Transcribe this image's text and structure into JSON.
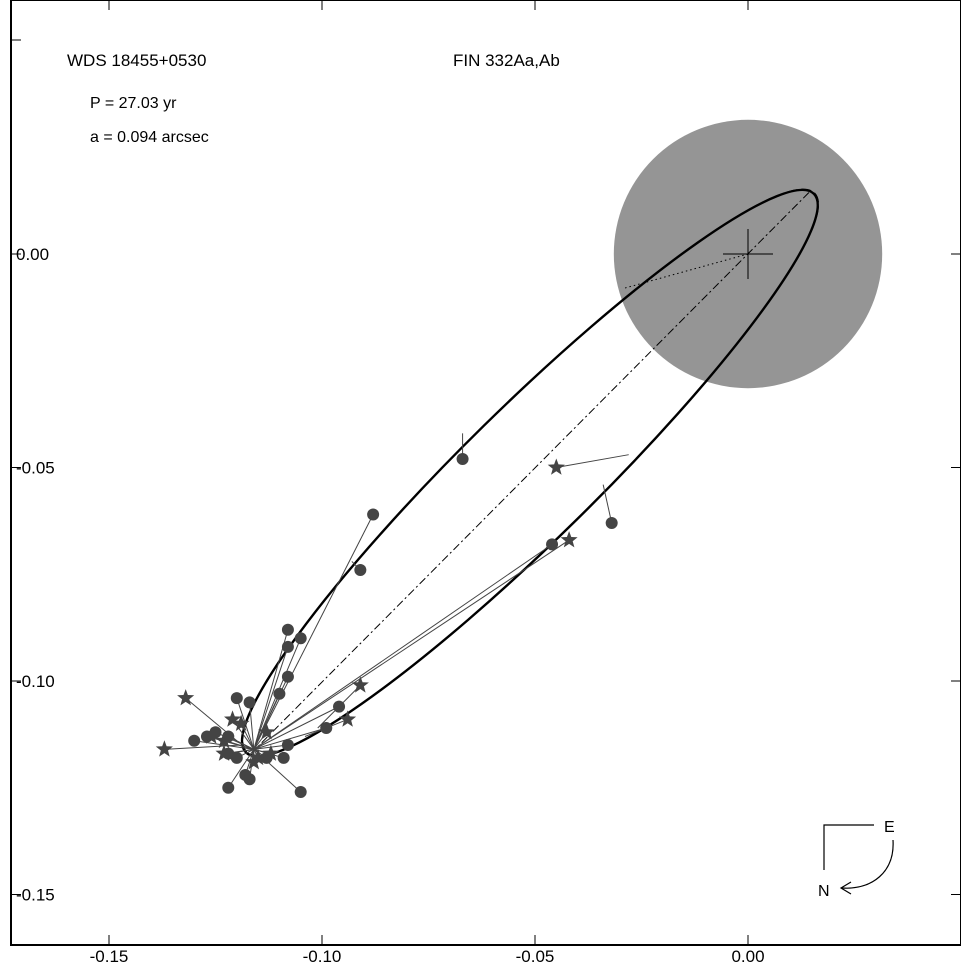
{
  "chart_data": {
    "type": "scatter",
    "title": "",
    "xlabel": "",
    "ylabel": "",
    "xlim": [
      -0.17,
      0.052
    ],
    "ylim": [
      -0.164,
      0.057
    ],
    "x_ticks": [
      -0.15,
      -0.1,
      -0.05,
      0.0
    ],
    "x_tick_labels": [
      "-0.15",
      "-0.10",
      "-0.05",
      "0.00"
    ],
    "y_ticks": [
      0.0,
      -0.05,
      -0.1,
      -0.15
    ],
    "y_tick_labels": [
      "0.00",
      "-0.05",
      "-0.10",
      "-0.15"
    ],
    "grid": false,
    "annotations": {
      "wds_id": "WDS 18455+0530",
      "system_name": "FIN 332Aa,Ab",
      "period": "P = 27.03 yr",
      "semimajor_axis": "a = 0.094 arcsec"
    },
    "orientation": {
      "east_label": "E",
      "north_label": "N"
    },
    "primary": {
      "x": 0.0,
      "y": 0.0
    },
    "exclusion_circle": {
      "cx": 0.0,
      "cy": 0.0,
      "r": 0.0315,
      "color": "#959595"
    },
    "orbit": {
      "center": [
        -0.0512,
        -0.0513
      ],
      "semi_major": 0.0935,
      "semi_minor": 0.0155,
      "angle_deg": 44.5
    },
    "line_of_nodes": {
      "from": [
        0.0143,
        0.0144
      ],
      "to": [
        -0.1167,
        -0.117
      ]
    },
    "periastron_line": {
      "from": [
        0.0,
        0.0
      ],
      "to": [
        -0.029,
        -0.008
      ]
    },
    "series": [
      {
        "marker": "circle",
        "color": "#444444",
        "points": [
          {
            "x": -0.067,
            "y": -0.048,
            "ox": -0.067,
            "oy": -0.042
          },
          {
            "x": -0.088,
            "y": -0.061
          },
          {
            "x": -0.091,
            "y": -0.074,
            "ox": -0.093,
            "oy": -0.072
          },
          {
            "x": -0.032,
            "y": -0.063,
            "ox": -0.034,
            "oy": -0.054
          },
          {
            "x": -0.046,
            "y": -0.068
          },
          {
            "x": -0.108,
            "y": -0.088
          },
          {
            "x": -0.105,
            "y": -0.09
          },
          {
            "x": -0.108,
            "y": -0.092
          },
          {
            "x": -0.108,
            "y": -0.099
          },
          {
            "x": -0.11,
            "y": -0.103
          },
          {
            "x": -0.12,
            "y": -0.104
          },
          {
            "x": -0.117,
            "y": -0.105
          },
          {
            "x": -0.096,
            "y": -0.106
          },
          {
            "x": -0.099,
            "y": -0.111
          },
          {
            "x": -0.125,
            "y": -0.112
          },
          {
            "x": -0.122,
            "y": -0.113
          },
          {
            "x": -0.127,
            "y": -0.113
          },
          {
            "x": -0.13,
            "y": -0.114
          },
          {
            "x": -0.108,
            "y": -0.115
          },
          {
            "x": -0.122,
            "y": -0.117
          },
          {
            "x": -0.12,
            "y": -0.118
          },
          {
            "x": -0.113,
            "y": -0.118
          },
          {
            "x": -0.109,
            "y": -0.118
          },
          {
            "x": -0.118,
            "y": -0.122
          },
          {
            "x": -0.117,
            "y": -0.123
          },
          {
            "x": -0.122,
            "y": -0.125
          },
          {
            "x": -0.105,
            "y": -0.126
          }
        ]
      },
      {
        "marker": "star",
        "color": "#444444",
        "points": [
          {
            "x": -0.045,
            "y": -0.05,
            "ox": -0.028,
            "oy": -0.047
          },
          {
            "x": -0.042,
            "y": -0.067
          },
          {
            "x": -0.091,
            "y": -0.101,
            "ox": -0.101,
            "oy": -0.111
          },
          {
            "x": -0.094,
            "y": -0.109,
            "ox": -0.104,
            "oy": -0.113
          },
          {
            "x": -0.132,
            "y": -0.104,
            "ox": -0.12,
            "oy": -0.114
          },
          {
            "x": -0.121,
            "y": -0.109
          },
          {
            "x": -0.119,
            "y": -0.11
          },
          {
            "x": -0.113,
            "y": -0.112
          },
          {
            "x": -0.126,
            "y": -0.113
          },
          {
            "x": -0.123,
            "y": -0.114
          },
          {
            "x": -0.137,
            "y": -0.116,
            "ox": -0.119,
            "oy": -0.115
          },
          {
            "x": -0.123,
            "y": -0.117
          },
          {
            "x": -0.115,
            "y": -0.118
          },
          {
            "x": -0.116,
            "y": -0.119
          },
          {
            "x": -0.112,
            "y": -0.117
          }
        ]
      }
    ]
  }
}
